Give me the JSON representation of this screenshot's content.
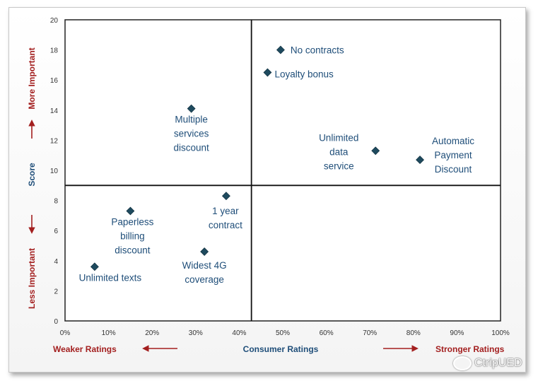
{
  "chart_data": {
    "type": "scatter",
    "title": "",
    "xlabel": "Consumer Ratings",
    "ylabel": "Score",
    "xlim": [
      0,
      100
    ],
    "ylim": [
      0,
      20
    ],
    "x_ticks": [
      "0%",
      "10%",
      "20%",
      "30%",
      "40%",
      "50%",
      "60%",
      "70%",
      "80%",
      "90%",
      "100%"
    ],
    "y_ticks": [
      "0",
      "2",
      "4",
      "6",
      "8",
      "10",
      "12",
      "14",
      "16",
      "18",
      "20"
    ],
    "quadrant_divider": {
      "x": 42.8,
      "y": 9.0
    },
    "points": [
      {
        "label_lines": [
          "No contracts"
        ],
        "x": 49.5,
        "y": 18.0
      },
      {
        "label_lines": [
          "Loyalty bonus"
        ],
        "x": 46.5,
        "y": 16.5
      },
      {
        "label_lines": [
          "Multiple",
          "services",
          "discount"
        ],
        "x": 29.0,
        "y": 14.1
      },
      {
        "label_lines": [
          "Unlimited",
          "data",
          "service"
        ],
        "x": 71.3,
        "y": 11.3
      },
      {
        "label_lines": [
          "Automatic",
          "Payment",
          "Discount"
        ],
        "x": 81.5,
        "y": 10.7
      },
      {
        "label_lines": [
          "1 year",
          "contract"
        ],
        "x": 37.0,
        "y": 8.3
      },
      {
        "label_lines": [
          "Paperless",
          "billing",
          "discount"
        ],
        "x": 15.0,
        "y": 7.3
      },
      {
        "label_lines": [
          "Widest 4G",
          "coverage"
        ],
        "x": 32.0,
        "y": 4.6
      },
      {
        "label_lines": [
          "Unlimited texts"
        ],
        "x": 6.8,
        "y": 3.6
      }
    ],
    "annotations": {
      "top_left": "More Important",
      "bottom_left": "Less Important",
      "bottom_left_x": "Weaker Ratings",
      "bottom_right_x": "Stronger Ratings"
    },
    "colors": {
      "marker": "#1e4a5e",
      "label": "#1f4e79",
      "accent_red": "#a31f1f",
      "axis_title": "#1f4e79"
    }
  },
  "watermark": {
    "text": "CtripUED",
    "icon": "wechat-logo-icon"
  }
}
